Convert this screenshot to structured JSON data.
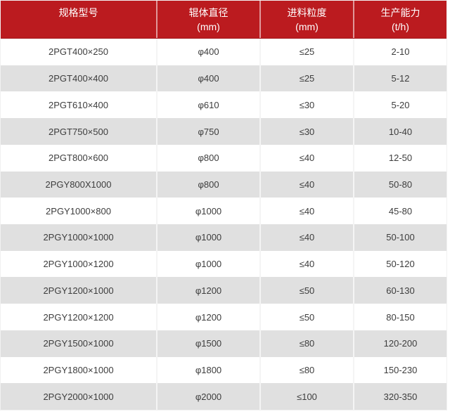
{
  "table": {
    "title": "roller-crusher-specifications",
    "columns": [
      {
        "line1": "规格型号",
        "line2": ""
      },
      {
        "line1": "辊体直径",
        "line2": "(mm)"
      },
      {
        "line1": "进料粒度",
        "line2": "(mm)"
      },
      {
        "line1": "生产能力",
        "line2": "(t/h)"
      }
    ],
    "rows": [
      [
        "2PGT400×250",
        "φ400",
        "≤25",
        "2-10"
      ],
      [
        "2PGT400×400",
        "φ400",
        "≤25",
        "5-12"
      ],
      [
        "2PGT610×400",
        "φ610",
        "≤30",
        "5-20"
      ],
      [
        "2PGT750×500",
        "φ750",
        "≤30",
        "10-40"
      ],
      [
        "2PGT800×600",
        "φ800",
        "≤40",
        "12-50"
      ],
      [
        "2PGY800X1000",
        "φ800",
        "≤40",
        "50-80"
      ],
      [
        "2PGY1000×800",
        "φ1000",
        "≤40",
        "45-80"
      ],
      [
        "2PGY1000×1000",
        "φ1000",
        "≤40",
        "50-100"
      ],
      [
        "2PGY1000×1200",
        "φ1000",
        "≤40",
        "50-120"
      ],
      [
        "2PGY1200×1000",
        "φ1200",
        "≤50",
        "60-130"
      ],
      [
        "2PGY1200×1200",
        "φ1200",
        "≤50",
        "80-150"
      ],
      [
        "2PGY1500×1000",
        "φ1500",
        "≤80",
        "120-200"
      ],
      [
        "2PGY1800×1000",
        "φ1800",
        "≤80",
        "150-230"
      ],
      [
        "2PGY2000×1000",
        "φ2000",
        "≤100",
        "320-350"
      ]
    ],
    "colors": {
      "header_bg": "#bb1b1f",
      "header_border_bottom": "#a2151a",
      "header_text": "#ffffff",
      "row_bg": "#ffffff",
      "row_alt_bg": "#e0e0e0",
      "cell_divider": "#f4f4f4",
      "body_text": "#3d3d3d"
    }
  }
}
